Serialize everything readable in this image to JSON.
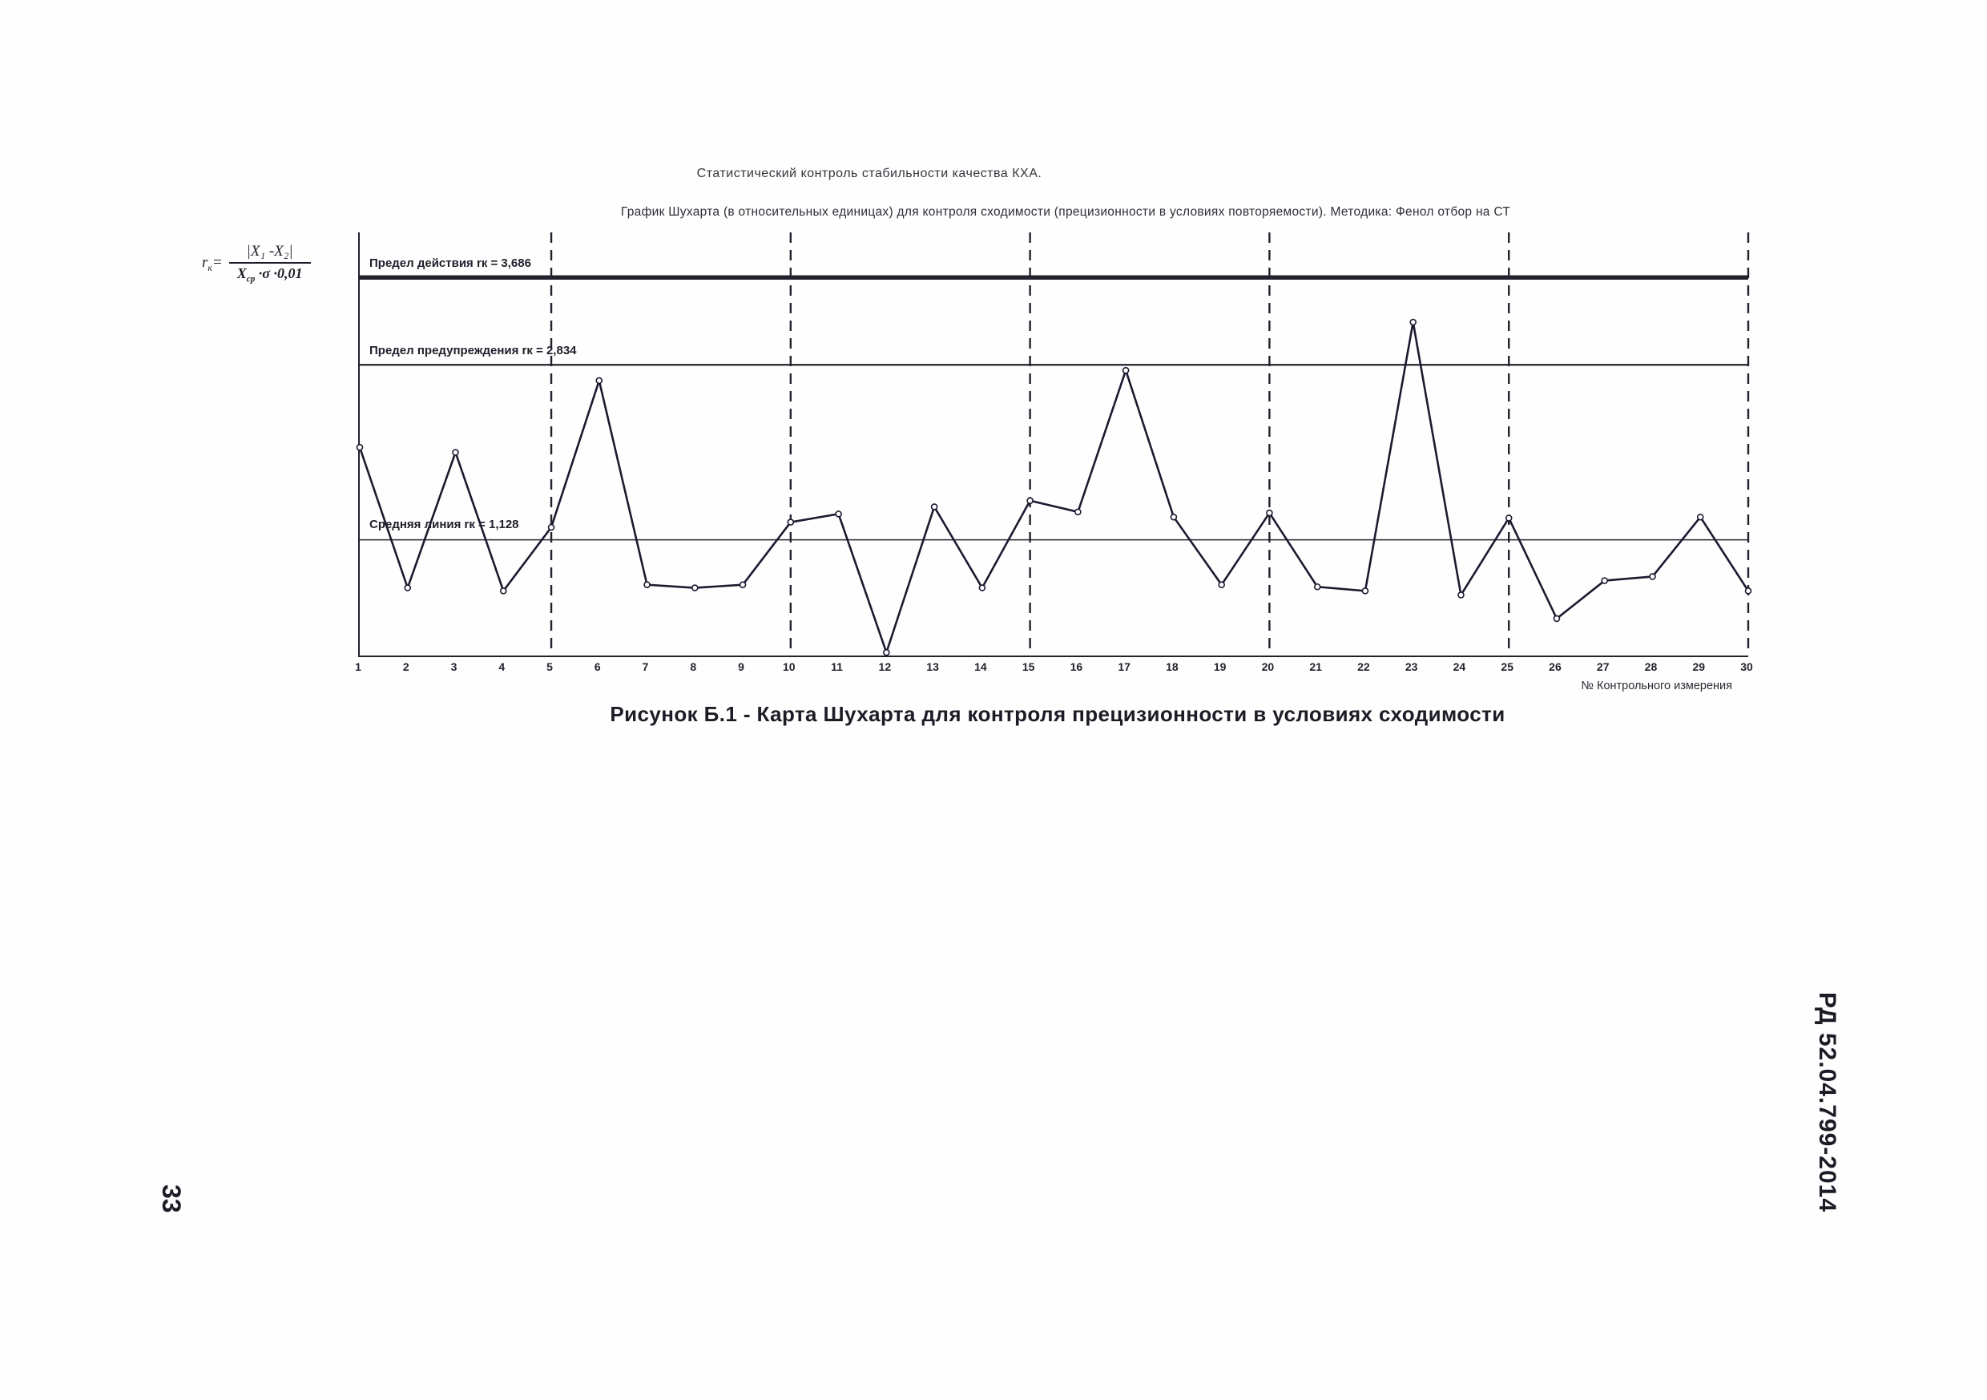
{
  "page": {
    "header_line1": "Статистический контроль стабильности качества КХА.",
    "header_line2": "График Шухарта (в относительных единицах) для контроля сходимости (прецизионности в условиях повторяемости). Методика: Фенол отбор на СТ",
    "caption": "Рисунок Б.1 -  Карта Шухарта для контроля прецизионности в условиях сходимости",
    "side_label": "РД 52.04.799-2014",
    "page_number": "33"
  },
  "formula": {
    "lhs_symbol": "r",
    "lhs_sub": "к",
    "equals": "=",
    "numerator": "|X₁ -X₂|",
    "den_base": "X",
    "den_sub": "ср",
    "den_rest": " ·σ ·0,01"
  },
  "chart_data": {
    "type": "line",
    "title": "График Шухарта для контроля сходимости",
    "xlabel": "№ Контрольного измерения",
    "ylabel": "rк (относительные единицы)",
    "x": [
      1,
      2,
      3,
      4,
      5,
      6,
      7,
      8,
      9,
      10,
      11,
      12,
      13,
      14,
      15,
      16,
      17,
      18,
      19,
      20,
      21,
      22,
      23,
      24,
      25,
      26,
      27,
      28,
      29,
      30
    ],
    "values": [
      2.03,
      0.66,
      1.98,
      0.63,
      1.25,
      2.68,
      0.69,
      0.66,
      0.69,
      1.3,
      1.38,
      0.03,
      1.45,
      0.66,
      1.51,
      1.4,
      2.78,
      1.35,
      0.69,
      1.39,
      0.67,
      0.63,
      3.25,
      0.59,
      1.34,
      0.36,
      0.73,
      0.77,
      1.35,
      0.63
    ],
    "limits": {
      "action": {
        "label": "Предел действия rк = 3,686",
        "value": 3.686
      },
      "warning": {
        "label": "Предел предупреждения rк = 2,834",
        "value": 2.834
      },
      "center": {
        "label": "Средняя линия rк = 1,128",
        "value": 1.128
      }
    },
    "vlines": [
      5,
      10,
      15,
      20,
      25,
      30
    ],
    "ylim": [
      0,
      4.125
    ],
    "grid": "dashed-vertical",
    "legend": "none",
    "line_color": "#1b1b30",
    "axis_color": "#22222c"
  }
}
